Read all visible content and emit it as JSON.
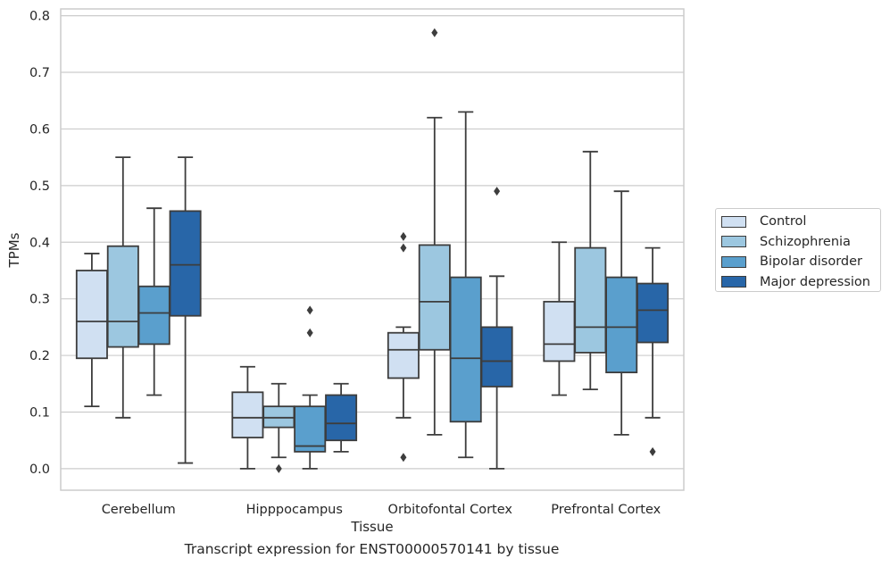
{
  "caption": "Transcript expression for ENST00000570141 by tissue",
  "chart_data": {
    "type": "box",
    "xlabel": "Tissue",
    "ylabel": "TPMs",
    "ylim": [
      -0.038,
      0.812
    ],
    "yticks": [
      0.0,
      0.1,
      0.2,
      0.3,
      0.4,
      0.5,
      0.6,
      0.7,
      0.8
    ],
    "ytick_labels": [
      "0.0",
      "0.1",
      "0.2",
      "0.3",
      "0.4",
      "0.5",
      "0.6",
      "0.7",
      "0.8"
    ],
    "grid": "horizontal",
    "legend_position": "right",
    "categories": [
      "Cerebellum",
      "Hipppocampus",
      "Orbitofontal Cortex",
      "Prefrontal Cortex"
    ],
    "series": [
      {
        "name": "Control",
        "color": "#d0e0f2",
        "boxes": [
          {
            "whislo": 0.11,
            "q1": 0.195,
            "med": 0.26,
            "q3": 0.35,
            "whishi": 0.38,
            "fliers": []
          },
          {
            "whislo": 0.0,
            "q1": 0.055,
            "med": 0.09,
            "q3": 0.135,
            "whishi": 0.18,
            "fliers": []
          },
          {
            "whislo": 0.09,
            "q1": 0.16,
            "med": 0.21,
            "q3": 0.24,
            "whishi": 0.25,
            "fliers": [
              0.02,
              0.39,
              0.41
            ]
          },
          {
            "whislo": 0.13,
            "q1": 0.19,
            "med": 0.22,
            "q3": 0.295,
            "whishi": 0.4,
            "fliers": []
          }
        ]
      },
      {
        "name": "Schizophrenia",
        "color": "#9cc7e0",
        "boxes": [
          {
            "whislo": 0.09,
            "q1": 0.215,
            "med": 0.26,
            "q3": 0.393,
            "whishi": 0.55,
            "fliers": []
          },
          {
            "whislo": 0.02,
            "q1": 0.073,
            "med": 0.09,
            "q3": 0.11,
            "whishi": 0.15,
            "fliers": [
              0.0
            ]
          },
          {
            "whislo": 0.06,
            "q1": 0.21,
            "med": 0.295,
            "q3": 0.395,
            "whishi": 0.62,
            "fliers": [
              0.77
            ]
          },
          {
            "whislo": 0.14,
            "q1": 0.205,
            "med": 0.25,
            "q3": 0.39,
            "whishi": 0.56,
            "fliers": []
          }
        ]
      },
      {
        "name": "Bipolar disorder",
        "color": "#5a9fcd",
        "boxes": [
          {
            "whislo": 0.13,
            "q1": 0.22,
            "med": 0.275,
            "q3": 0.322,
            "whishi": 0.46,
            "fliers": []
          },
          {
            "whislo": 0.0,
            "q1": 0.03,
            "med": 0.04,
            "q3": 0.11,
            "whishi": 0.13,
            "fliers": [
              0.24,
              0.28
            ]
          },
          {
            "whislo": 0.02,
            "q1": 0.083,
            "med": 0.195,
            "q3": 0.338,
            "whishi": 0.63,
            "fliers": []
          },
          {
            "whislo": 0.06,
            "q1": 0.17,
            "med": 0.25,
            "q3": 0.338,
            "whishi": 0.49,
            "fliers": []
          }
        ]
      },
      {
        "name": "Major depression",
        "color": "#2866a8",
        "boxes": [
          {
            "whislo": 0.01,
            "q1": 0.27,
            "med": 0.36,
            "q3": 0.455,
            "whishi": 0.55,
            "fliers": []
          },
          {
            "whislo": 0.03,
            "q1": 0.05,
            "med": 0.08,
            "q3": 0.13,
            "whishi": 0.15,
            "fliers": []
          },
          {
            "whislo": 0.0,
            "q1": 0.145,
            "med": 0.19,
            "q3": 0.25,
            "whishi": 0.34,
            "fliers": [
              0.49
            ]
          },
          {
            "whislo": 0.09,
            "q1": 0.223,
            "med": 0.28,
            "q3": 0.327,
            "whishi": 0.39,
            "fliers": [
              0.03
            ]
          }
        ]
      }
    ]
  }
}
